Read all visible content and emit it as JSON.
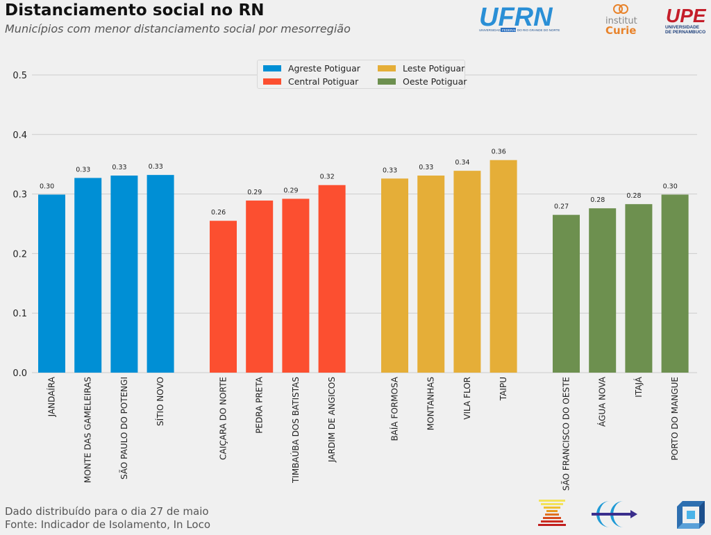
{
  "header": {
    "title": "Distanciamento social no RN",
    "subtitle": "Municípios com menor distanciamento social por mesorregião"
  },
  "logos": {
    "ufrn": {
      "text": "UFRN",
      "caption_left": "UNIVERSIDADE",
      "caption_mid": "FEDERAL",
      "caption_right": "DO RIO GRANDE DO NORTE"
    },
    "curie": {
      "line1": "institut",
      "line2": "Curie"
    },
    "upe": {
      "text": "UPE",
      "caption1": "UNIVERSIDADE",
      "caption2": "DE PERNAMBUCO"
    }
  },
  "footer": {
    "line1": "Dado distribuído para o dia 27 de maio",
    "line2": "Fonte: Indicador de Isolamento, In Loco"
  },
  "chart_data": {
    "type": "bar",
    "title": "Distanciamento social no RN",
    "subtitle": "Municípios com menor distanciamento social por mesorregião",
    "xlabel": "",
    "ylabel": "",
    "ylim": [
      0,
      0.5
    ],
    "yticks": [
      "0.0",
      "0.1",
      "0.2",
      "0.3",
      "0.4",
      "0.5"
    ],
    "grid": true,
    "legend_position": "top-center",
    "series": [
      {
        "name": "Agreste Potiguar",
        "color": "#008fd5",
        "categories": [
          "JANDAÍRA",
          "MONTE DAS GAMELEIRAS",
          "SÃO PAULO DO POTENGI",
          "SÍTIO NOVO"
        ],
        "values": [
          0.299,
          0.327,
          0.331,
          0.332
        ],
        "labels": [
          "0.30",
          "0.33",
          "0.33",
          "0.33"
        ]
      },
      {
        "name": "Central Potiguar",
        "color": "#fc4f30",
        "categories": [
          "CAIÇARA DO NORTE",
          "PEDRA PRETA",
          "TIMBAÚBA DOS BATISTAS",
          "JARDIM DE ANGICOS"
        ],
        "values": [
          0.255,
          0.289,
          0.292,
          0.315
        ],
        "labels": [
          "0.26",
          "0.29",
          "0.29",
          "0.32"
        ]
      },
      {
        "name": "Leste Potiguar",
        "color": "#e5ae38",
        "categories": [
          "BAÍA FORMOSA",
          "MONTANHAS",
          "VILA FLOR",
          "TAIPU"
        ],
        "values": [
          0.326,
          0.331,
          0.339,
          0.357
        ],
        "labels": [
          "0.33",
          "0.33",
          "0.34",
          "0.36"
        ]
      },
      {
        "name": "Oeste Potiguar",
        "color": "#6d904f",
        "categories": [
          "SÃO FRANCISCO DO OESTE",
          "ÁGUA NOVA",
          "ITAJÁ",
          "PORTO DO MANGUE"
        ],
        "values": [
          0.265,
          0.276,
          0.283,
          0.299
        ],
        "labels": [
          "0.27",
          "0.28",
          "0.28",
          "0.30"
        ]
      }
    ]
  }
}
